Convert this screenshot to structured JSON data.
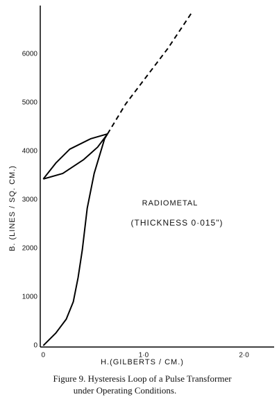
{
  "chart_data": {
    "type": "line",
    "caption": [
      "Figure 9. Hysteresis Loop of a Pulse Transformer",
      "under Operating Conditions."
    ],
    "x_label": "H.(GILBERTS / CM.)",
    "y_label": "B. (LINES / SQ. CM.)",
    "annotations": [
      "RADIOMETAL",
      "(THICKNESS  0·015\")"
    ],
    "xlim": [
      -0.03,
      2.3
    ],
    "ylim": [
      -30,
      7000
    ],
    "xticks": [
      0,
      {
        "value": 1,
        "label": "1·0"
      },
      {
        "value": 2,
        "label": "2·0"
      }
    ],
    "yticks": [
      0,
      1000,
      2000,
      3000,
      4000,
      5000,
      6000
    ],
    "grid": false,
    "series": [
      {
        "color": "#000",
        "dashed": false,
        "x": [
          0,
          0.125,
          0.229,
          0.299,
          0.347,
          0.389,
          0.438,
          0.507,
          0.611,
          0.64
        ],
        "values": [
          0,
          257,
          543,
          900,
          1400,
          1971,
          2829,
          3543,
          4257,
          4357
        ]
      },
      {
        "color": "#000",
        "dashed": true,
        "x": [
          0.64,
          0.82,
          1.03,
          1.24,
          1.48
        ],
        "values": [
          4357,
          4971,
          5543,
          6114,
          6857
        ]
      },
      {
        "color": "#000",
        "dashed": false,
        "x": [
          0,
          0.125,
          0.264,
          0.472,
          0.64
        ],
        "values": [
          3429,
          3757,
          4043,
          4257,
          4357
        ]
      },
      {
        "color": "#000",
        "dashed": false,
        "x": [
          0,
          0.194,
          0.403,
          0.542,
          0.64
        ],
        "values": [
          3429,
          3543,
          3829,
          4086,
          4357
        ]
      }
    ]
  }
}
